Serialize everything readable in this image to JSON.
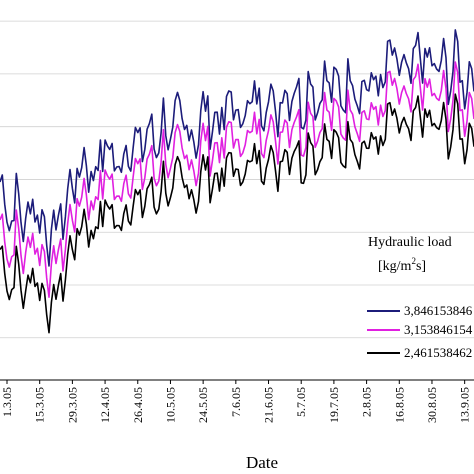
{
  "chart_data": {
    "type": "line",
    "title": "",
    "xlabel": "Date",
    "ylabel": "",
    "x_tick_labels": [
      "1.3.05",
      "15.3.05",
      "29.3.05",
      "12.4.05",
      "26.4.05",
      "10.5.05",
      "24.5.05",
      "7.6.05",
      "21.6.05",
      "5.7.05",
      "19.7.05",
      "2.8.05",
      "16.8.05",
      "30.8.05",
      "13.9.05"
    ],
    "x_tick_days": [
      0,
      14,
      28,
      42,
      56,
      70,
      84,
      98,
      112,
      126,
      140,
      154,
      168,
      182,
      196
    ],
    "xlim_days": [
      -3,
      200
    ],
    "ylim": [
      0,
      9
    ],
    "grid": {
      "horizontal": true,
      "vertical": false
    },
    "legend": {
      "title_line1": "Hydraulic load",
      "title_line2_base": "[kg/m",
      "title_line2_sup": "2",
      "title_line2_end": "s]",
      "placement": "right"
    },
    "series": [
      {
        "name": "3,846153846",
        "color": "#1c1c7a",
        "values": [
          4.7,
          3.9,
          4.2,
          3.7,
          4.3,
          3.6,
          3.4,
          3.8,
          4.4,
          4.9,
          5.2,
          4.8,
          5.6,
          5.3,
          5.0,
          5.8,
          5.4,
          5.9,
          5.6,
          6.1,
          5.7,
          6.3,
          5.8,
          5.9,
          6.5,
          6.0,
          6.3,
          6.6,
          6.1,
          6.7,
          6.4,
          6.9,
          6.3,
          6.8,
          7.0,
          6.5,
          7.1,
          6.6,
          7.2,
          6.8,
          6.9,
          7.3,
          6.7,
          7.2,
          6.8,
          7.5,
          7.6,
          7.1,
          7.4,
          7.8,
          7.3,
          7.5,
          7.2,
          7.6,
          7.0,
          7.4
        ],
        "min_dips": [
          3.2,
          2.9,
          3.1
        ]
      },
      {
        "name": "3,153846154",
        "color": "#e020e0",
        "values": [
          3.8,
          3.0,
          3.4,
          2.9,
          3.5,
          2.8,
          2.6,
          3.0,
          3.6,
          4.2,
          4.5,
          4.1,
          4.9,
          4.6,
          4.3,
          5.1,
          4.7,
          5.2,
          4.9,
          5.4,
          5.0,
          5.6,
          5.1,
          5.2,
          5.8,
          5.3,
          5.6,
          5.9,
          5.4,
          6.0,
          5.7,
          6.2,
          5.6,
          6.1,
          6.3,
          5.8,
          6.4,
          5.9,
          6.5,
          6.1,
          6.2,
          6.6,
          6.0,
          6.5,
          6.1,
          6.8,
          6.9,
          6.4,
          6.7,
          7.1,
          6.6,
          6.8,
          6.5,
          6.9,
          6.3,
          6.7
        ]
      },
      {
        "name": "2,461538462",
        "color": "#000000",
        "values": [
          3.1,
          2.2,
          2.6,
          2.0,
          2.7,
          1.9,
          1.7,
          2.2,
          2.9,
          3.5,
          3.8,
          3.4,
          4.2,
          3.9,
          3.6,
          4.4,
          4.0,
          4.5,
          4.2,
          4.7,
          4.3,
          4.9,
          4.4,
          4.5,
          5.1,
          4.6,
          4.9,
          5.2,
          4.7,
          5.3,
          5.0,
          5.5,
          4.9,
          5.4,
          5.6,
          5.1,
          5.7,
          5.2,
          5.8,
          5.4,
          5.5,
          5.9,
          5.3,
          5.8,
          5.4,
          6.1,
          6.2,
          5.7,
          6.0,
          6.4,
          5.9,
          6.1,
          5.8,
          6.2,
          5.6,
          6.0
        ]
      }
    ]
  }
}
